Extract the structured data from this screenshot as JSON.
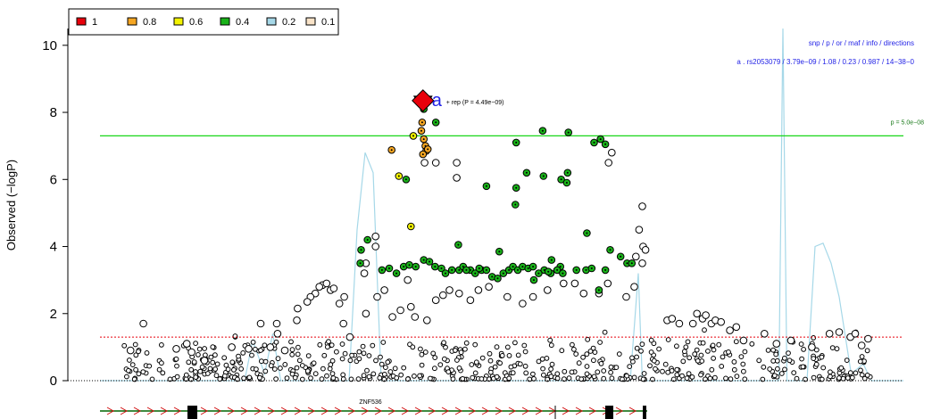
{
  "chart_data": {
    "type": "scatter",
    "title": "",
    "ylabel": "Observed (−logP)",
    "xlabel": "",
    "ylim": [
      0,
      10.5
    ],
    "xlim": [
      0,
      100
    ],
    "yticks": [
      "0",
      "2",
      "4",
      "6",
      "8",
      "10"
    ],
    "legend": {
      "placement": "top-left",
      "entries": [
        {
          "label": "1",
          "color": "#e8000b"
        },
        {
          "label": "0.8",
          "color": "#f5a623"
        },
        {
          "label": "0.6",
          "color": "#f3f300"
        },
        {
          "label": "0.4",
          "color": "#19b219"
        },
        {
          "label": "0.2",
          "color": "#a6d8e8"
        },
        {
          "label": "0.1",
          "color": "#f9e3c8"
        }
      ]
    },
    "info_header": "snp / p / or / maf / info / directions",
    "info_row": "a . rs2053079 / 3.79e−09 / 1.08 / 0.23 / 0.987 / 14−38−0",
    "threshold": {
      "y": 7.3,
      "label": "p = 5.0e−08",
      "color": "#19d619"
    },
    "suggestive_line": {
      "y": 1.3,
      "color": "#e8000b"
    },
    "lead_snp": {
      "x": 40.2,
      "y": 8.35,
      "marker_label": "a",
      "rep_label": "+ rep (P = 4.49e−09)"
    },
    "recomb_color": "#a6d8e8",
    "recombination": [
      [
        0,
        0
      ],
      [
        18,
        0
      ],
      [
        19,
        1.2
      ],
      [
        20.5,
        0.2
      ],
      [
        21.5,
        1.4
      ],
      [
        22.5,
        0
      ],
      [
        31,
        0
      ],
      [
        32,
        4.5
      ],
      [
        33,
        6.8
      ],
      [
        34,
        6.2
      ],
      [
        35,
        0
      ],
      [
        66,
        0
      ],
      [
        67,
        3.2
      ],
      [
        67.5,
        0
      ],
      [
        84.5,
        0
      ],
      [
        85,
        10.5
      ],
      [
        85.5,
        0
      ],
      [
        88,
        0
      ],
      [
        89,
        4
      ],
      [
        90,
        4.1
      ],
      [
        91,
        3.5
      ],
      [
        92,
        2.5
      ],
      [
        93.5,
        0.2
      ],
      [
        95,
        0.5
      ],
      [
        96,
        0
      ],
      [
        100,
        0
      ]
    ],
    "series": [
      {
        "name": "0.8",
        "color": "#f5a623",
        "points": [
          [
            40.1,
            7.7
          ],
          [
            40.0,
            7.45
          ],
          [
            40.3,
            7.2
          ],
          [
            40.5,
            7.0
          ],
          [
            40.6,
            6.85
          ],
          [
            40.2,
            6.75
          ],
          [
            40.8,
            6.9
          ],
          [
            36.3,
            6.88
          ]
        ]
      },
      {
        "name": "0.6",
        "color": "#f3f300",
        "points": [
          [
            39.0,
            7.3
          ],
          [
            37.2,
            6.1
          ],
          [
            38.7,
            4.6
          ]
        ]
      },
      {
        "name": "0.4",
        "color": "#19b219",
        "points": [
          [
            40.3,
            8.1
          ],
          [
            41.8,
            7.7
          ],
          [
            38.1,
            6.0
          ],
          [
            48.1,
            5.8
          ],
          [
            51.7,
            5.25
          ],
          [
            51.8,
            5.75
          ],
          [
            51.8,
            7.1
          ],
          [
            55.1,
            7.45
          ],
          [
            58.3,
            7.4
          ],
          [
            61.5,
            7.1
          ],
          [
            62.3,
            7.2
          ],
          [
            62.9,
            7.05
          ],
          [
            53.1,
            6.2
          ],
          [
            55.2,
            6.1
          ],
          [
            57.4,
            6.0
          ],
          [
            58.2,
            6.2
          ],
          [
            58.1,
            5.9
          ],
          [
            32.5,
            3.9
          ],
          [
            33.3,
            4.2
          ],
          [
            32.4,
            3.5
          ],
          [
            60.6,
            4.4
          ],
          [
            63.5,
            3.9
          ],
          [
            64.8,
            3.7
          ],
          [
            65.6,
            3.5
          ],
          [
            66.2,
            3.5
          ],
          [
            62.9,
            3.3
          ],
          [
            62.1,
            2.7
          ],
          [
            56.2,
            3.6
          ],
          [
            57.3,
            3.4
          ],
          [
            40.3,
            3.6
          ],
          [
            41.0,
            3.55
          ],
          [
            41.7,
            3.4
          ],
          [
            44.6,
            4.05
          ],
          [
            49.7,
            3.85
          ],
          [
            37.8,
            3.4
          ],
          [
            38.5,
            3.45
          ],
          [
            39.3,
            3.4
          ],
          [
            35.1,
            3.3
          ],
          [
            36.0,
            3.35
          ],
          [
            36.9,
            3.2
          ],
          [
            42.5,
            3.35
          ],
          [
            43.0,
            3.2
          ],
          [
            43.8,
            3.3
          ],
          [
            44.7,
            3.3
          ],
          [
            45.2,
            3.4
          ],
          [
            46.1,
            3.3
          ],
          [
            46.7,
            3.2
          ],
          [
            47.5,
            3.3
          ],
          [
            48.1,
            3.3
          ],
          [
            48.8,
            3.1
          ],
          [
            49.5,
            3.05
          ],
          [
            50.2,
            3.2
          ],
          [
            50.9,
            3.3
          ],
          [
            51.4,
            3.4
          ],
          [
            52.0,
            3.3
          ],
          [
            52.6,
            3.4
          ],
          [
            53.3,
            3.35
          ],
          [
            53.9,
            3.4
          ],
          [
            54.6,
            3.2
          ],
          [
            55.3,
            3.3
          ],
          [
            56.1,
            3.2
          ],
          [
            56.9,
            3.3
          ],
          [
            57.6,
            3.2
          ],
          [
            59.3,
            3.3
          ],
          [
            60.5,
            3.3
          ],
          [
            61.2,
            3.35
          ],
          [
            45.6,
            3.3
          ],
          [
            47.2,
            3.35
          ],
          [
            54.0,
            3.0
          ],
          [
            55.8,
            3.25
          ]
        ]
      },
      {
        "name": "0.2",
        "color": "#ffffff",
        "points": [
          [
            40.4,
            6.5
          ],
          [
            41.8,
            6.5
          ],
          [
            44.4,
            6.5
          ],
          [
            44.4,
            6.05
          ],
          [
            63.7,
            6.8
          ],
          [
            63.3,
            6.5
          ],
          [
            67.6,
            4.0
          ],
          [
            67.1,
            4.5
          ],
          [
            67.9,
            3.9
          ],
          [
            66.7,
            3.7
          ],
          [
            67.5,
            3.5
          ],
          [
            67.5,
            5.2
          ],
          [
            34.3,
            4.3
          ],
          [
            34.3,
            4.0
          ],
          [
            33.1,
            3.5
          ],
          [
            32.9,
            3.2
          ],
          [
            27.7,
            2.85
          ],
          [
            28.2,
            2.9
          ],
          [
            28.7,
            2.7
          ],
          [
            29.1,
            2.75
          ],
          [
            30.4,
            2.5
          ],
          [
            27.3,
            2.8
          ],
          [
            26.8,
            2.6
          ],
          [
            26.2,
            2.5
          ],
          [
            25.8,
            2.35
          ],
          [
            24.6,
            2.15
          ],
          [
            24.5,
            1.8
          ],
          [
            29.8,
            2.3
          ],
          [
            30.3,
            1.7
          ],
          [
            31.1,
            1.3
          ],
          [
            33.1,
            2.0
          ],
          [
            34.5,
            2.5
          ],
          [
            35.4,
            2.7
          ],
          [
            36.4,
            1.9
          ],
          [
            37.4,
            2.1
          ],
          [
            38.3,
            3.0
          ],
          [
            38.7,
            2.2
          ],
          [
            39.2,
            1.9
          ],
          [
            40.7,
            1.8
          ],
          [
            41.8,
            2.4
          ],
          [
            42.7,
            2.55
          ],
          [
            43.5,
            2.7
          ],
          [
            44.7,
            2.6
          ],
          [
            46.1,
            2.4
          ],
          [
            47.1,
            2.7
          ],
          [
            48.4,
            2.8
          ],
          [
            50.7,
            2.5
          ],
          [
            52.6,
            2.3
          ],
          [
            53.9,
            2.5
          ],
          [
            55.7,
            2.7
          ],
          [
            57.7,
            2.9
          ],
          [
            59.1,
            2.9
          ],
          [
            60.2,
            2.6
          ],
          [
            62.1,
            2.6
          ],
          [
            63.2,
            2.9
          ],
          [
            65.5,
            2.5
          ],
          [
            66.5,
            2.8
          ],
          [
            70.6,
            1.8
          ],
          [
            71.2,
            1.85
          ],
          [
            72.1,
            1.7
          ],
          [
            73.8,
            1.7
          ],
          [
            74.3,
            2.0
          ],
          [
            75.0,
            1.85
          ],
          [
            75.4,
            1.95
          ],
          [
            76.1,
            1.7
          ],
          [
            76.6,
            1.8
          ],
          [
            77.3,
            1.75
          ],
          [
            78.4,
            1.5
          ],
          [
            79.2,
            1.6
          ],
          [
            80.1,
            1.2
          ],
          [
            82.7,
            1.4
          ],
          [
            84.2,
            1.1
          ],
          [
            86.0,
            1.2
          ],
          [
            88.6,
            1.0
          ],
          [
            90.8,
            1.4
          ],
          [
            92.0,
            1.45
          ],
          [
            93.4,
            1.3
          ],
          [
            94.0,
            1.4
          ],
          [
            94.8,
            1.05
          ],
          [
            95.6,
            1.25
          ],
          [
            20.0,
            1.7
          ],
          [
            22.0,
            1.7
          ],
          [
            22.1,
            1.4
          ],
          [
            23.0,
            0.9
          ],
          [
            21.2,
            1.0
          ],
          [
            16.4,
            1.0
          ],
          [
            18.5,
            0.95
          ],
          [
            13.0,
            0.6
          ],
          [
            10.8,
            1.1
          ],
          [
            11.4,
            0.85
          ],
          [
            9.5,
            0.95
          ],
          [
            5.4,
            1.7
          ],
          [
            3.8,
            0.9
          ]
        ]
      }
    ],
    "gene": {
      "name": "ZNF536",
      "color": "#006400"
    }
  }
}
